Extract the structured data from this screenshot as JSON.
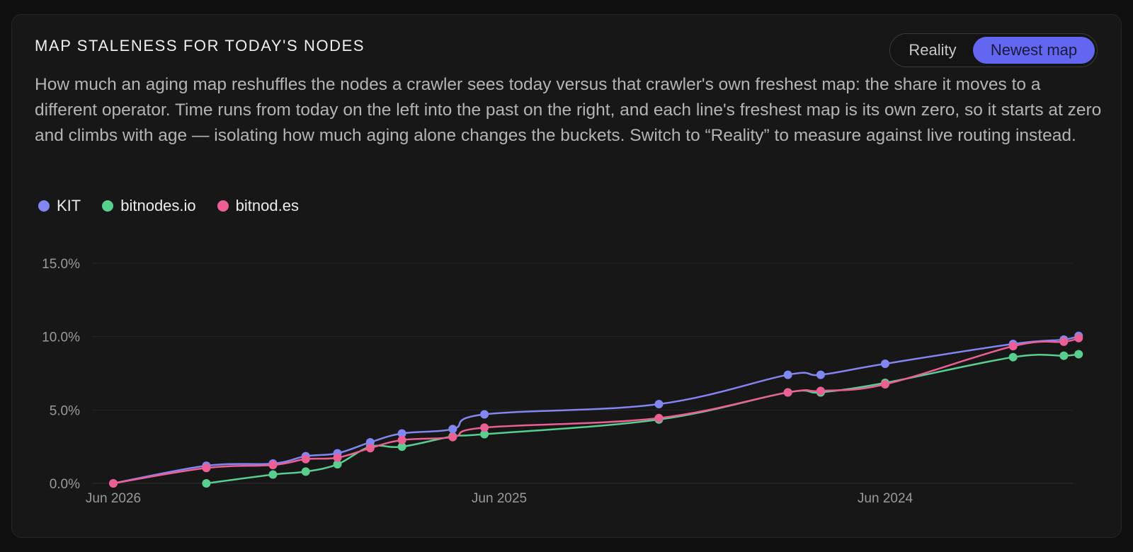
{
  "card": {
    "title": "MAP STALENESS FOR TODAY'S NODES",
    "description": "How much an aging map reshuffles the nodes a crawler sees today versus that crawler's own freshest map: the share it moves to a different operator. Time runs from today on the left into the past on the right, and each line's freshest map is its own zero, so it starts at zero and climbs with age — isolating how much aging alone changes the buckets. Switch to “Reality” to measure against live routing instead."
  },
  "toggle": {
    "options": [
      "Reality",
      "Newest map"
    ],
    "selected": "Newest map"
  },
  "chart_data": {
    "type": "line",
    "title": "",
    "xlabel": "",
    "ylabel": "",
    "x_axis": "time, newest on the left, older to the right",
    "x_ticks": [
      "Jun 2026",
      "Jun 2025",
      "Jun 2024"
    ],
    "y_ticks": [
      "0.0%",
      "5.0%",
      "10.0%",
      "15.0%"
    ],
    "ylim": [
      0,
      15
    ],
    "y_unit": "%",
    "grid": "horizontal",
    "legend_position": "top-left",
    "series": [
      {
        "name": "KIT",
        "color": "#8286f1",
        "points": [
          [
            "2026-06-01",
            0.0
          ],
          [
            "2026-03-05",
            1.2
          ],
          [
            "2026-01-01",
            1.35
          ],
          [
            "2025-12-01",
            1.85
          ],
          [
            "2025-11-01",
            2.05
          ],
          [
            "2025-10-01",
            2.8
          ],
          [
            "2025-09-01",
            3.4
          ],
          [
            "2025-07-15",
            3.7
          ],
          [
            "2025-06-15",
            4.7
          ],
          [
            "2025-01-01",
            5.4
          ],
          [
            "2024-09-01",
            7.4
          ],
          [
            "2024-08-01",
            7.4
          ],
          [
            "2024-06-01",
            8.15
          ],
          [
            "2024-02-01",
            9.5
          ],
          [
            "2023-12-15",
            9.8
          ],
          [
            "2023-12-01",
            10.05
          ]
        ]
      },
      {
        "name": "bitnodes.io",
        "color": "#58cf8e",
        "points": [
          [
            "2026-03-05",
            0.0
          ],
          [
            "2026-01-01",
            0.6
          ],
          [
            "2025-12-01",
            0.8
          ],
          [
            "2025-11-01",
            1.3
          ],
          [
            "2025-10-01",
            2.5
          ],
          [
            "2025-09-01",
            2.5
          ],
          [
            "2025-07-15",
            3.2
          ],
          [
            "2025-06-15",
            3.35
          ],
          [
            "2025-01-01",
            4.35
          ],
          [
            "2024-09-01",
            6.2
          ],
          [
            "2024-08-01",
            6.2
          ],
          [
            "2024-06-01",
            6.85
          ],
          [
            "2024-02-01",
            8.6
          ],
          [
            "2023-12-15",
            8.7
          ],
          [
            "2023-12-01",
            8.8
          ]
        ]
      },
      {
        "name": "bitnod.es",
        "color": "#ec5f94",
        "points": [
          [
            "2026-06-01",
            0.0
          ],
          [
            "2026-03-05",
            1.05
          ],
          [
            "2026-01-01",
            1.25
          ],
          [
            "2025-12-01",
            1.65
          ],
          [
            "2025-11-01",
            1.75
          ],
          [
            "2025-10-01",
            2.4
          ],
          [
            "2025-09-01",
            2.95
          ],
          [
            "2025-07-15",
            3.15
          ],
          [
            "2025-06-15",
            3.8
          ],
          [
            "2025-01-01",
            4.45
          ],
          [
            "2024-09-01",
            6.2
          ],
          [
            "2024-08-01",
            6.3
          ],
          [
            "2024-06-01",
            6.75
          ],
          [
            "2024-02-01",
            9.35
          ],
          [
            "2023-12-15",
            9.65
          ],
          [
            "2023-12-01",
            9.9
          ]
        ]
      }
    ]
  }
}
